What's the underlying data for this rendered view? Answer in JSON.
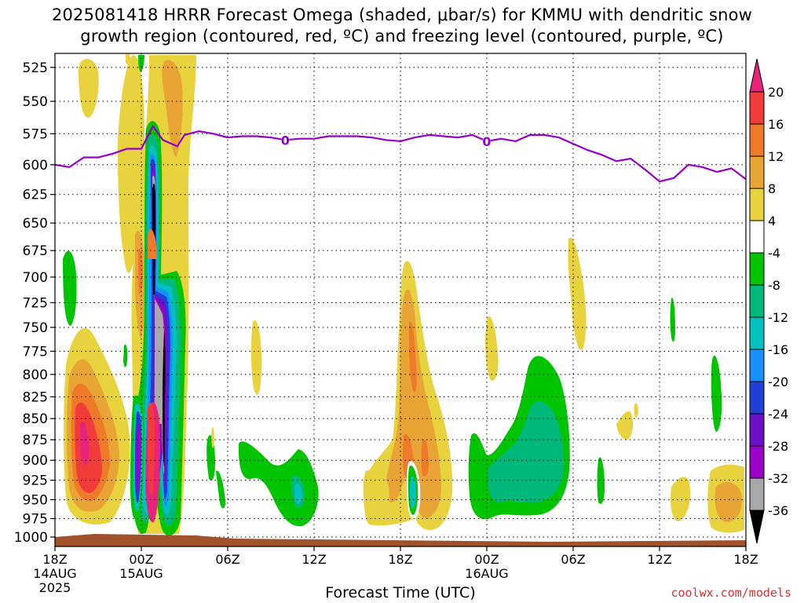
{
  "title": {
    "line1": "2025081418 HRRR Forecast Omega (shaded, μbar/s) for KMMU with dendritic snow",
    "line2": "growth region (contoured, red, ºC) and freezing level (contoured, purple, ºC)"
  },
  "credit": "coolwx.com/models",
  "chart_data": {
    "type": "time-height contour",
    "xlabel": "Forecast Time (UTC)",
    "ylabel": "",
    "x_ticks": [
      {
        "hour": 0,
        "label": [
          "18Z",
          "14AUG",
          "2025"
        ]
      },
      {
        "hour": 6,
        "label": [
          "00Z",
          "15AUG"
        ]
      },
      {
        "hour": 12,
        "label": [
          "06Z"
        ]
      },
      {
        "hour": 18,
        "label": [
          "12Z"
        ]
      },
      {
        "hour": 24,
        "label": [
          "18Z"
        ]
      },
      {
        "hour": 30,
        "label": [
          "00Z",
          "16AUG"
        ]
      },
      {
        "hour": 36,
        "label": [
          "06Z"
        ]
      },
      {
        "hour": 42,
        "label": [
          "12Z"
        ]
      },
      {
        "hour": 48,
        "label": [
          "18Z"
        ]
      }
    ],
    "y_ticks": [
      525,
      550,
      575,
      600,
      625,
      650,
      675,
      700,
      725,
      750,
      775,
      800,
      825,
      850,
      875,
      900,
      925,
      950,
      975,
      1000
    ],
    "ylim": [
      515,
      1013
    ],
    "xlim": [
      0,
      48
    ],
    "y_scale": "log-pressure (inverted)",
    "grid": true,
    "colorbar": {
      "ticks": [
        20,
        16,
        12,
        8,
        4,
        -4,
        -8,
        -12,
        -16,
        -20,
        -24,
        -28,
        -32,
        -36
      ],
      "colors": [
        "#e8237a",
        "#f23b3b",
        "#ef7a2a",
        "#e8a535",
        "#e8d23d",
        "#ffffff",
        "#00c400",
        "#00b87a",
        "#00c0c0",
        "#1a90ff",
        "#1f3fd6",
        "#6a10c8",
        "#9a00c8",
        "#a8a8a8",
        "#000000"
      ]
    },
    "freezing_level": {
      "name": "0",
      "color": "#9400c8",
      "label_hours": [
        16,
        30
      ],
      "points": [
        [
          0,
          600
        ],
        [
          1,
          602
        ],
        [
          2,
          594
        ],
        [
          3,
          594
        ],
        [
          4,
          591
        ],
        [
          5,
          587
        ],
        [
          6,
          587
        ],
        [
          6.8,
          569
        ],
        [
          7.5,
          580
        ],
        [
          8.5,
          585
        ],
        [
          9,
          576
        ],
        [
          10,
          573
        ],
        [
          11,
          575
        ],
        [
          12,
          578
        ],
        [
          13,
          577
        ],
        [
          14,
          577
        ],
        [
          15,
          578
        ],
        [
          16,
          580
        ],
        [
          17,
          579
        ],
        [
          18,
          579
        ],
        [
          19,
          577
        ],
        [
          20,
          577
        ],
        [
          21,
          577
        ],
        [
          22,
          578
        ],
        [
          23,
          580
        ],
        [
          24,
          581
        ],
        [
          25,
          578
        ],
        [
          26,
          576
        ],
        [
          27,
          577
        ],
        [
          28,
          578
        ],
        [
          29,
          576
        ],
        [
          30,
          581
        ],
        [
          31,
          579
        ],
        [
          32,
          581
        ],
        [
          33,
          576
        ],
        [
          34,
          576
        ],
        [
          35,
          578
        ],
        [
          36,
          583
        ],
        [
          37,
          588
        ],
        [
          38,
          592
        ],
        [
          39,
          597
        ],
        [
          40,
          595
        ],
        [
          41,
          604
        ],
        [
          42,
          614
        ],
        [
          43,
          611
        ],
        [
          44,
          600
        ],
        [
          45,
          602
        ],
        [
          46,
          606
        ],
        [
          47,
          603
        ],
        [
          48,
          612
        ]
      ]
    },
    "omega_features": [
      {
        "hour": 7.2,
        "p_top": 585,
        "p_bot": 990,
        "peak": -36,
        "sign": "ascent"
      },
      {
        "hour": 2.5,
        "p_top": 775,
        "p_bot": 985,
        "peak": 20,
        "sign": "descent"
      },
      {
        "hour": 26.2,
        "p_top": 700,
        "p_bot": 985,
        "peak": 16,
        "sign": "descent"
      },
      {
        "hour": 34.5,
        "p_top": 790,
        "p_bot": 985,
        "peak": -8,
        "sign": "ascent"
      },
      {
        "hour": 45.5,
        "p_top": 920,
        "p_bot": 990,
        "peak": 12,
        "sign": "descent"
      }
    ]
  }
}
